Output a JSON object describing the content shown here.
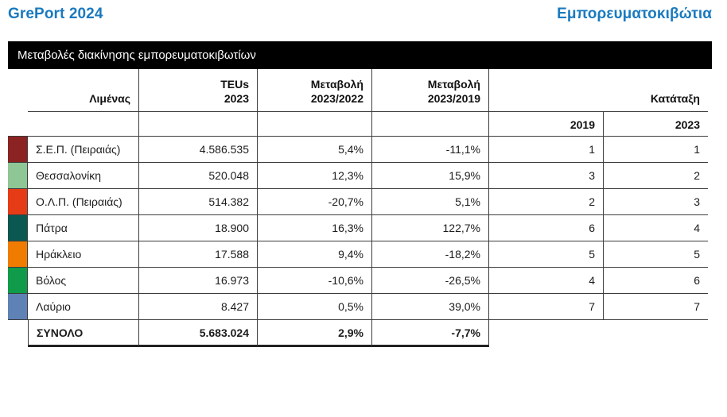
{
  "header": {
    "report_title": "GrePort 2024",
    "page_title": "Εμπορευματοκιβώτια",
    "accent_color": "#1a7abf"
  },
  "table": {
    "title": "Μεταβολές διακίνησης εμπορευματοκιβωτίων",
    "headers": {
      "port": "Λιμένας",
      "teus_line1": "TEUs",
      "teus_line2": "2023",
      "chg1_line1": "Μεταβολή",
      "chg1_line2": "2023/2022",
      "chg2_line1": "Μεταβολή",
      "chg2_line2": "2023/2019",
      "ranking": "Κατάταξη",
      "rank_2019": "2019",
      "rank_2023": "2023"
    },
    "rows": [
      {
        "name": "Σ.Ε.Π. (Πειραιάς)",
        "swatch": "#8a2322",
        "teus": "4.586.535",
        "chg_2023_2022": "5,4%",
        "chg_2023_2019": "-11,1%",
        "rank_2019": "1",
        "rank_2023": "1"
      },
      {
        "name": "Θεσσαλονίκη",
        "swatch": "#8ec695",
        "teus": "520.048",
        "chg_2023_2022": "12,3%",
        "chg_2023_2019": "15,9%",
        "rank_2019": "3",
        "rank_2023": "2"
      },
      {
        "name": "Ο.Λ.Π. (Πειραιάς)",
        "swatch": "#e63b17",
        "teus": "514.382",
        "chg_2023_2022": "-20,7%",
        "chg_2023_2019": "5,1%",
        "rank_2019": "2",
        "rank_2023": "3"
      },
      {
        "name": "Πάτρα",
        "swatch": "#0b5751",
        "teus": "18.900",
        "chg_2023_2022": "16,3%",
        "chg_2023_2019": "122,7%",
        "rank_2019": "6",
        "rank_2023": "4"
      },
      {
        "name": "Ηράκλειο",
        "swatch": "#ef7c00",
        "teus": "17.588",
        "chg_2023_2022": "9,4%",
        "chg_2023_2019": "-18,2%",
        "rank_2019": "5",
        "rank_2023": "5"
      },
      {
        "name": "Βόλος",
        "swatch": "#0f9b49",
        "teus": "16.973",
        "chg_2023_2022": "-10,6%",
        "chg_2023_2019": "-26,5%",
        "rank_2019": "4",
        "rank_2023": "6"
      },
      {
        "name": "Λαύριο",
        "swatch": "#5f82b6",
        "teus": "8.427",
        "chg_2023_2022": "0,5%",
        "chg_2023_2019": "39,0%",
        "rank_2019": "7",
        "rank_2023": "7"
      }
    ],
    "total": {
      "label": "ΣΥΝΟΛΟ",
      "teus": "5.683.024",
      "chg_2023_2022": "2,9%",
      "chg_2023_2019": "-7,7%"
    }
  }
}
